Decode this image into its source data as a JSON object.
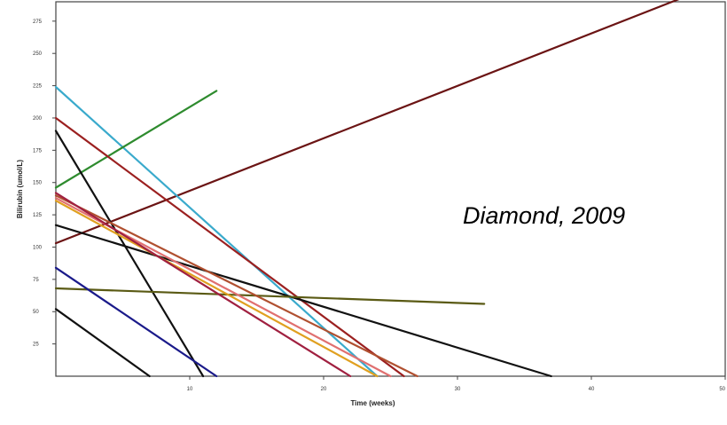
{
  "chart_data": {
    "type": "line",
    "title": "",
    "xlabel": "Time (weeks)",
    "ylabel": "Bilirubin (umol/L)",
    "xlim": [
      0,
      50
    ],
    "ylim": [
      0,
      290
    ],
    "x_ticks": [
      10,
      20,
      30,
      40,
      50
    ],
    "x_tick_labels": [
      "10",
      "20",
      "30",
      "40",
      "50"
    ],
    "y_ticks": [
      25,
      50,
      75,
      100,
      125,
      150,
      175,
      200,
      225,
      250,
      275
    ],
    "y_tick_labels": [
      "25",
      "50",
      "75",
      "100",
      "125",
      "150",
      "175",
      "200",
      "225",
      "250",
      "275"
    ],
    "grid": false,
    "legend": "none",
    "annotation": "Diamond, 2009",
    "series": [
      {
        "color": "#6b1414",
        "x": [
          0,
          48
        ],
        "y": [
          103,
          298
        ]
      },
      {
        "color": "#3aaacc",
        "x": [
          0,
          24
        ],
        "y": [
          224,
          0
        ]
      },
      {
        "color": "#2e8b2e",
        "x": [
          0,
          12
        ],
        "y": [
          146,
          221
        ]
      },
      {
        "color": "#9b2020",
        "x": [
          0,
          26
        ],
        "y": [
          200,
          0
        ]
      },
      {
        "color": "#111111",
        "x": [
          0,
          11
        ],
        "y": [
          190,
          0
        ]
      },
      {
        "color": "#111111",
        "x": [
          0,
          37
        ],
        "y": [
          117,
          0
        ]
      },
      {
        "color": "#5a5a14",
        "x": [
          0,
          32
        ],
        "y": [
          68,
          56
        ]
      },
      {
        "color": "#1a1a8a",
        "x": [
          0,
          12
        ],
        "y": [
          84,
          0
        ]
      },
      {
        "color": "#111111",
        "x": [
          0,
          7
        ],
        "y": [
          52,
          0
        ]
      },
      {
        "color": "#e0a020",
        "x": [
          0,
          24
        ],
        "y": [
          136,
          0
        ]
      },
      {
        "color": "#e07070",
        "x": [
          0,
          25
        ],
        "y": [
          138,
          0
        ]
      },
      {
        "color": "#b05030",
        "x": [
          0,
          27
        ],
        "y": [
          140,
          0
        ]
      },
      {
        "color": "#a02040",
        "x": [
          0,
          22
        ],
        "y": [
          142,
          0
        ]
      }
    ]
  }
}
